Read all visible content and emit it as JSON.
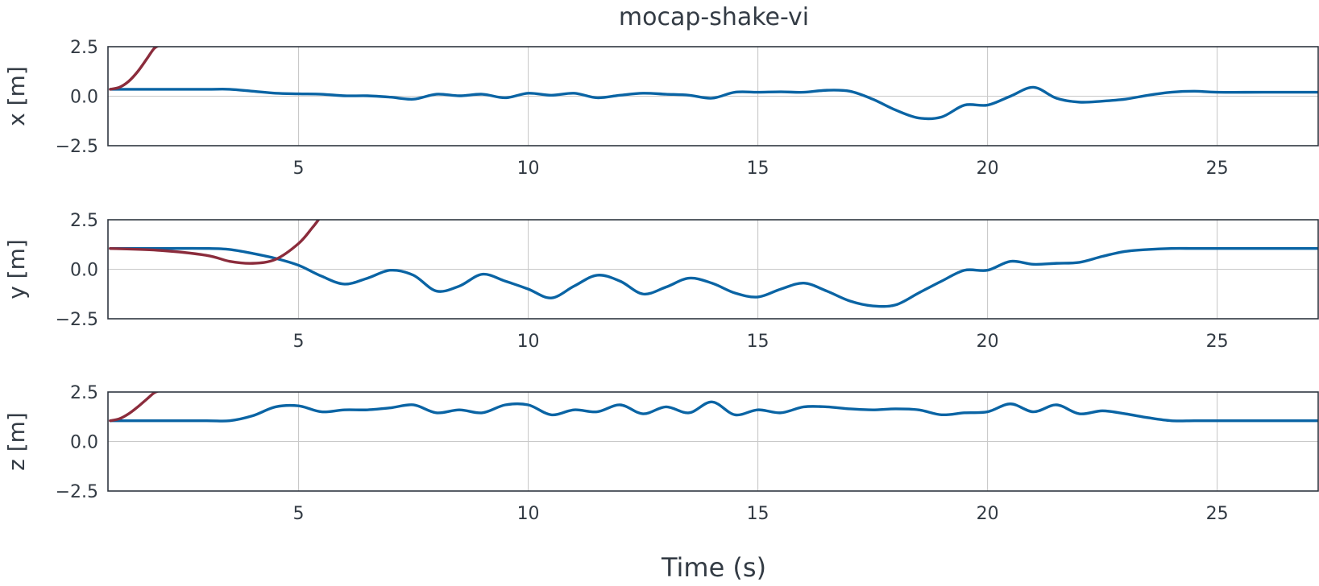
{
  "chart_data": {
    "type": "line",
    "title": "mocap-shake-vi",
    "xlabel": "Time (s)",
    "xlim": [
      0.85,
      27.2
    ],
    "xticks": [
      5,
      10,
      15,
      20,
      25
    ],
    "grid": true,
    "colors": {
      "blue": "#0a64a4",
      "red": "#8b2c3c",
      "axis": "#2f3640",
      "grid": "#c9c9c9"
    },
    "panels": [
      {
        "ylabel": "x [m]",
        "ylim": [
          -2.5,
          2.5
        ],
        "yticks": [
          -2.5,
          0.0,
          2.5
        ],
        "series": [
          {
            "color": "#0a64a4",
            "x": [
              0.9,
              2.0,
              3.0,
              3.5,
              4.0,
              4.5,
              5.0,
              5.5,
              6.0,
              6.5,
              7.0,
              7.5,
              8.0,
              8.5,
              9.0,
              9.5,
              10.0,
              10.5,
              11.0,
              11.5,
              12.0,
              12.5,
              13.0,
              13.5,
              14.0,
              14.5,
              15.0,
              15.5,
              16.0,
              16.5,
              17.0,
              17.5,
              18.0,
              18.5,
              19.0,
              19.5,
              20.0,
              20.5,
              21.0,
              21.5,
              22.0,
              22.5,
              23.0,
              23.5,
              24.0,
              24.5,
              25.0,
              26.0,
              27.2
            ],
            "y": [
              0.35,
              0.35,
              0.35,
              0.35,
              0.25,
              0.15,
              0.12,
              0.1,
              0.02,
              0.02,
              -0.05,
              -0.15,
              0.1,
              0.02,
              0.1,
              -0.08,
              0.15,
              0.05,
              0.15,
              -0.08,
              0.05,
              0.15,
              0.1,
              0.05,
              -0.1,
              0.2,
              0.2,
              0.22,
              0.2,
              0.3,
              0.25,
              -0.15,
              -0.7,
              -1.1,
              -1.05,
              -0.45,
              -0.45,
              0.0,
              0.45,
              -0.1,
              -0.3,
              -0.25,
              -0.15,
              0.05,
              0.2,
              0.25,
              0.2,
              0.2,
              0.2
            ]
          },
          {
            "color": "#8b2c3c",
            "x": [
              0.9,
              1.1,
              1.3,
              1.5,
              1.7,
              1.85,
              1.95
            ],
            "y": [
              0.35,
              0.45,
              0.75,
              1.25,
              1.9,
              2.4,
              2.55
            ]
          }
        ]
      },
      {
        "ylabel": "y [m]",
        "ylim": [
          -2.5,
          2.5
        ],
        "yticks": [
          -2.5,
          0.0,
          2.5
        ],
        "series": [
          {
            "color": "#0a64a4",
            "x": [
              0.9,
              2.0,
              3.0,
              3.5,
              4.0,
              4.5,
              5.0,
              5.5,
              6.0,
              6.5,
              7.0,
              7.5,
              8.0,
              8.5,
              9.0,
              9.5,
              10.0,
              10.5,
              11.0,
              11.5,
              12.0,
              12.5,
              13.0,
              13.5,
              14.0,
              14.5,
              15.0,
              15.5,
              16.0,
              16.5,
              17.0,
              17.5,
              18.0,
              18.5,
              19.0,
              19.5,
              20.0,
              20.5,
              21.0,
              21.5,
              22.0,
              22.5,
              23.0,
              23.5,
              24.0,
              24.5,
              25.0,
              26.0,
              27.2
            ],
            "y": [
              1.05,
              1.05,
              1.05,
              1.0,
              0.8,
              0.55,
              0.2,
              -0.35,
              -0.75,
              -0.45,
              -0.05,
              -0.3,
              -1.1,
              -0.85,
              -0.25,
              -0.6,
              -1.0,
              -1.45,
              -0.85,
              -0.3,
              -0.6,
              -1.25,
              -0.9,
              -0.45,
              -0.7,
              -1.2,
              -1.4,
              -1.0,
              -0.7,
              -1.1,
              -1.6,
              -1.85,
              -1.8,
              -1.2,
              -0.6,
              -0.05,
              -0.05,
              0.4,
              0.25,
              0.3,
              0.35,
              0.65,
              0.9,
              1.0,
              1.05,
              1.05,
              1.05,
              1.05,
              1.05
            ]
          },
          {
            "color": "#8b2c3c",
            "x": [
              0.9,
              2.0,
              3.0,
              3.5,
              4.0,
              4.5,
              5.0,
              5.3,
              5.45
            ],
            "y": [
              1.05,
              0.95,
              0.7,
              0.4,
              0.3,
              0.5,
              1.3,
              2.1,
              2.55
            ]
          }
        ]
      },
      {
        "ylabel": "z [m]",
        "ylim": [
          -2.5,
          2.5
        ],
        "yticks": [
          -2.5,
          0.0,
          2.5
        ],
        "series": [
          {
            "color": "#0a64a4",
            "x": [
              0.9,
              2.0,
              3.0,
              3.5,
              4.0,
              4.5,
              5.0,
              5.5,
              6.0,
              6.5,
              7.0,
              7.5,
              8.0,
              8.5,
              9.0,
              9.5,
              10.0,
              10.5,
              11.0,
              11.5,
              12.0,
              12.5,
              13.0,
              13.5,
              14.0,
              14.5,
              15.0,
              15.5,
              16.0,
              16.5,
              17.0,
              17.5,
              18.0,
              18.5,
              19.0,
              19.5,
              20.0,
              20.5,
              21.0,
              21.5,
              22.0,
              22.5,
              23.0,
              23.5,
              24.0,
              24.5,
              25.0,
              26.0,
              27.2
            ],
            "y": [
              1.05,
              1.05,
              1.05,
              1.05,
              1.3,
              1.75,
              1.8,
              1.5,
              1.6,
              1.6,
              1.7,
              1.85,
              1.45,
              1.6,
              1.45,
              1.85,
              1.85,
              1.35,
              1.6,
              1.5,
              1.85,
              1.4,
              1.75,
              1.45,
              2.0,
              1.35,
              1.6,
              1.45,
              1.75,
              1.75,
              1.65,
              1.6,
              1.65,
              1.6,
              1.35,
              1.45,
              1.5,
              1.9,
              1.5,
              1.85,
              1.4,
              1.55,
              1.4,
              1.2,
              1.05,
              1.05,
              1.05,
              1.05,
              1.05
            ]
          },
          {
            "color": "#8b2c3c",
            "x": [
              0.9,
              1.1,
              1.3,
              1.5,
              1.7,
              1.85,
              1.95
            ],
            "y": [
              1.05,
              1.15,
              1.4,
              1.75,
              2.15,
              2.45,
              2.55
            ]
          }
        ]
      }
    ]
  }
}
